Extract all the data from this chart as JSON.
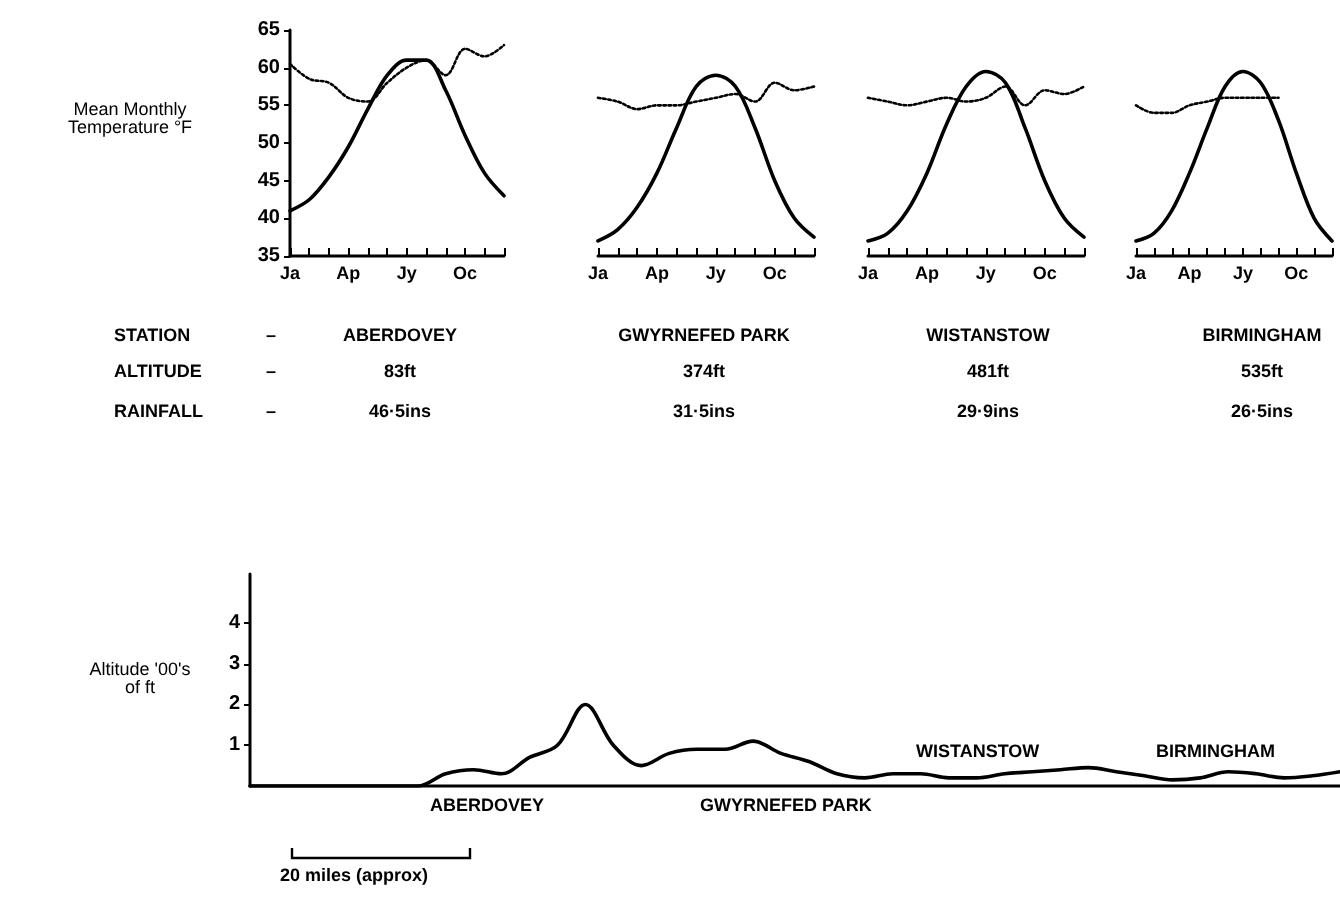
{
  "chart_data": [
    {
      "type": "line",
      "title": "ABERDOVEY",
      "ylabel": "Mean Monthly Temperature °F",
      "categories": [
        "Ja",
        null,
        null,
        "Ap",
        null,
        null,
        "Jy",
        null,
        null,
        "Oc",
        null,
        null
      ],
      "ylim": [
        35,
        65
      ],
      "yticks": [
        35,
        40,
        45,
        50,
        55,
        60,
        65
      ],
      "marker": "none",
      "annotations": [
        "STATION",
        "ALTITUDE",
        "RAINFALL",
        "–",
        "–",
        "–",
        "83ft",
        "46·5ins"
      ],
      "series": [
        {
          "color": "#000000",
          "line_style": "solid",
          "values": [
            41,
            42.5,
            45.5,
            49.5,
            54.5,
            59,
            61,
            61,
            57,
            51,
            46,
            43
          ]
        },
        {
          "color": "#000000",
          "line_style": "dotted",
          "values": [
            60.5,
            58.5,
            58,
            56,
            55.5,
            58,
            60,
            61,
            59,
            62.5,
            61.5,
            63
          ]
        }
      ]
    },
    {
      "type": "line",
      "title": "GWYRNEFED PARK",
      "categories": [
        "Ja",
        null,
        null,
        "Ap",
        null,
        null,
        "Jy",
        null,
        null,
        "Oc",
        null,
        null
      ],
      "ylim": [
        35,
        65
      ],
      "yticks": [
        35,
        40,
        45,
        50,
        55,
        60,
        65
      ],
      "tick_labels": "x",
      "marker": "none",
      "annotations": [
        "374ft",
        "31·5ins"
      ],
      "series": [
        {
          "color": "#000000",
          "line_style": "solid",
          "values": [
            37,
            38.5,
            41.5,
            46,
            52,
            57.5,
            59,
            57.5,
            52,
            45,
            40,
            37.5
          ]
        },
        {
          "color": "#000000",
          "line_style": "dotted",
          "values": [
            56,
            55.5,
            54.5,
            55,
            55,
            55.5,
            56,
            56.5,
            55.5,
            58,
            57,
            57.5
          ]
        }
      ]
    },
    {
      "type": "line",
      "title": "WISTANSTOW",
      "categories": [
        "Ja",
        null,
        null,
        "Ap",
        null,
        null,
        "Jy",
        null,
        null,
        "Oc",
        null,
        null
      ],
      "ylim": [
        35,
        65
      ],
      "yticks": [
        35,
        40,
        45,
        50,
        55,
        60,
        65
      ],
      "tick_labels": "x",
      "marker": "none",
      "annotations": [
        "481ft",
        "29·9ins"
      ],
      "series": [
        {
          "color": "#000000",
          "line_style": "solid",
          "values": [
            37,
            38,
            41,
            46,
            52.5,
            57.5,
            59.5,
            58,
            52,
            45,
            40,
            37.5
          ]
        },
        {
          "color": "#000000",
          "line_style": "dotted",
          "values": [
            56,
            55.5,
            55,
            55.5,
            56,
            55.5,
            56,
            57.5,
            55,
            57,
            56.5,
            57.5
          ]
        }
      ]
    },
    {
      "type": "line",
      "title": "BIRMINGHAM",
      "categories": [
        "Ja",
        null,
        null,
        "Ap",
        null,
        null,
        "Jy",
        null,
        null,
        "Oc",
        null,
        null
      ],
      "ylim": [
        35,
        65
      ],
      "yticks": [
        35,
        40,
        45,
        50,
        55,
        60,
        65
      ],
      "tick_labels": "x",
      "marker": "none",
      "annotations": [
        "535ft",
        "26·5ins"
      ],
      "series": [
        {
          "color": "#000000",
          "line_style": "solid",
          "values": [
            37,
            38,
            41,
            46,
            52,
            57.5,
            59.5,
            58,
            53,
            46,
            40,
            37
          ]
        },
        {
          "color": "#000000",
          "line_style": "dotted",
          "values": [
            55,
            54,
            54,
            55,
            55.5,
            56,
            56,
            56,
            56,
            null,
            null,
            null
          ]
        }
      ]
    },
    {
      "type": "line",
      "ylabel": "Altitude '00's of ft",
      "categories": [
        null,
        null,
        null,
        null,
        null,
        null,
        null,
        null,
        null,
        null,
        null,
        null,
        null,
        null,
        null,
        null,
        null,
        null,
        null,
        null,
        null,
        null,
        null,
        null,
        null,
        null,
        null,
        null,
        null,
        null,
        null,
        null,
        null,
        null,
        null,
        null,
        null,
        null,
        null,
        null
      ],
      "ylim": [
        0,
        5.2
      ],
      "yticks": [
        1,
        2,
        3,
        4
      ],
      "tick_labels": "y",
      "marker": "none",
      "annotations": [
        "ABERDOVEY",
        "GWYRNEFED PARK",
        "WISTANSTOW",
        "BIRMINGHAM",
        "20 miles (approx)"
      ],
      "series": [
        {
          "color": "#000000",
          "line_style": "solid",
          "values": [
            0,
            0,
            0,
            0,
            0,
            0,
            0,
            0.3,
            0.4,
            0.3,
            0.7,
            1.0,
            2.0,
            1.0,
            0.5,
            0.8,
            0.9,
            0.9,
            1.1,
            0.8,
            0.6,
            0.3,
            0.2,
            0.3,
            0.3,
            0.2,
            0.2,
            0.3,
            0.35,
            0.4,
            0.45,
            0.35,
            0.25,
            0.15,
            0.2,
            0.35,
            0.3,
            0.2,
            0.25,
            0.35
          ]
        }
      ]
    }
  ]
}
